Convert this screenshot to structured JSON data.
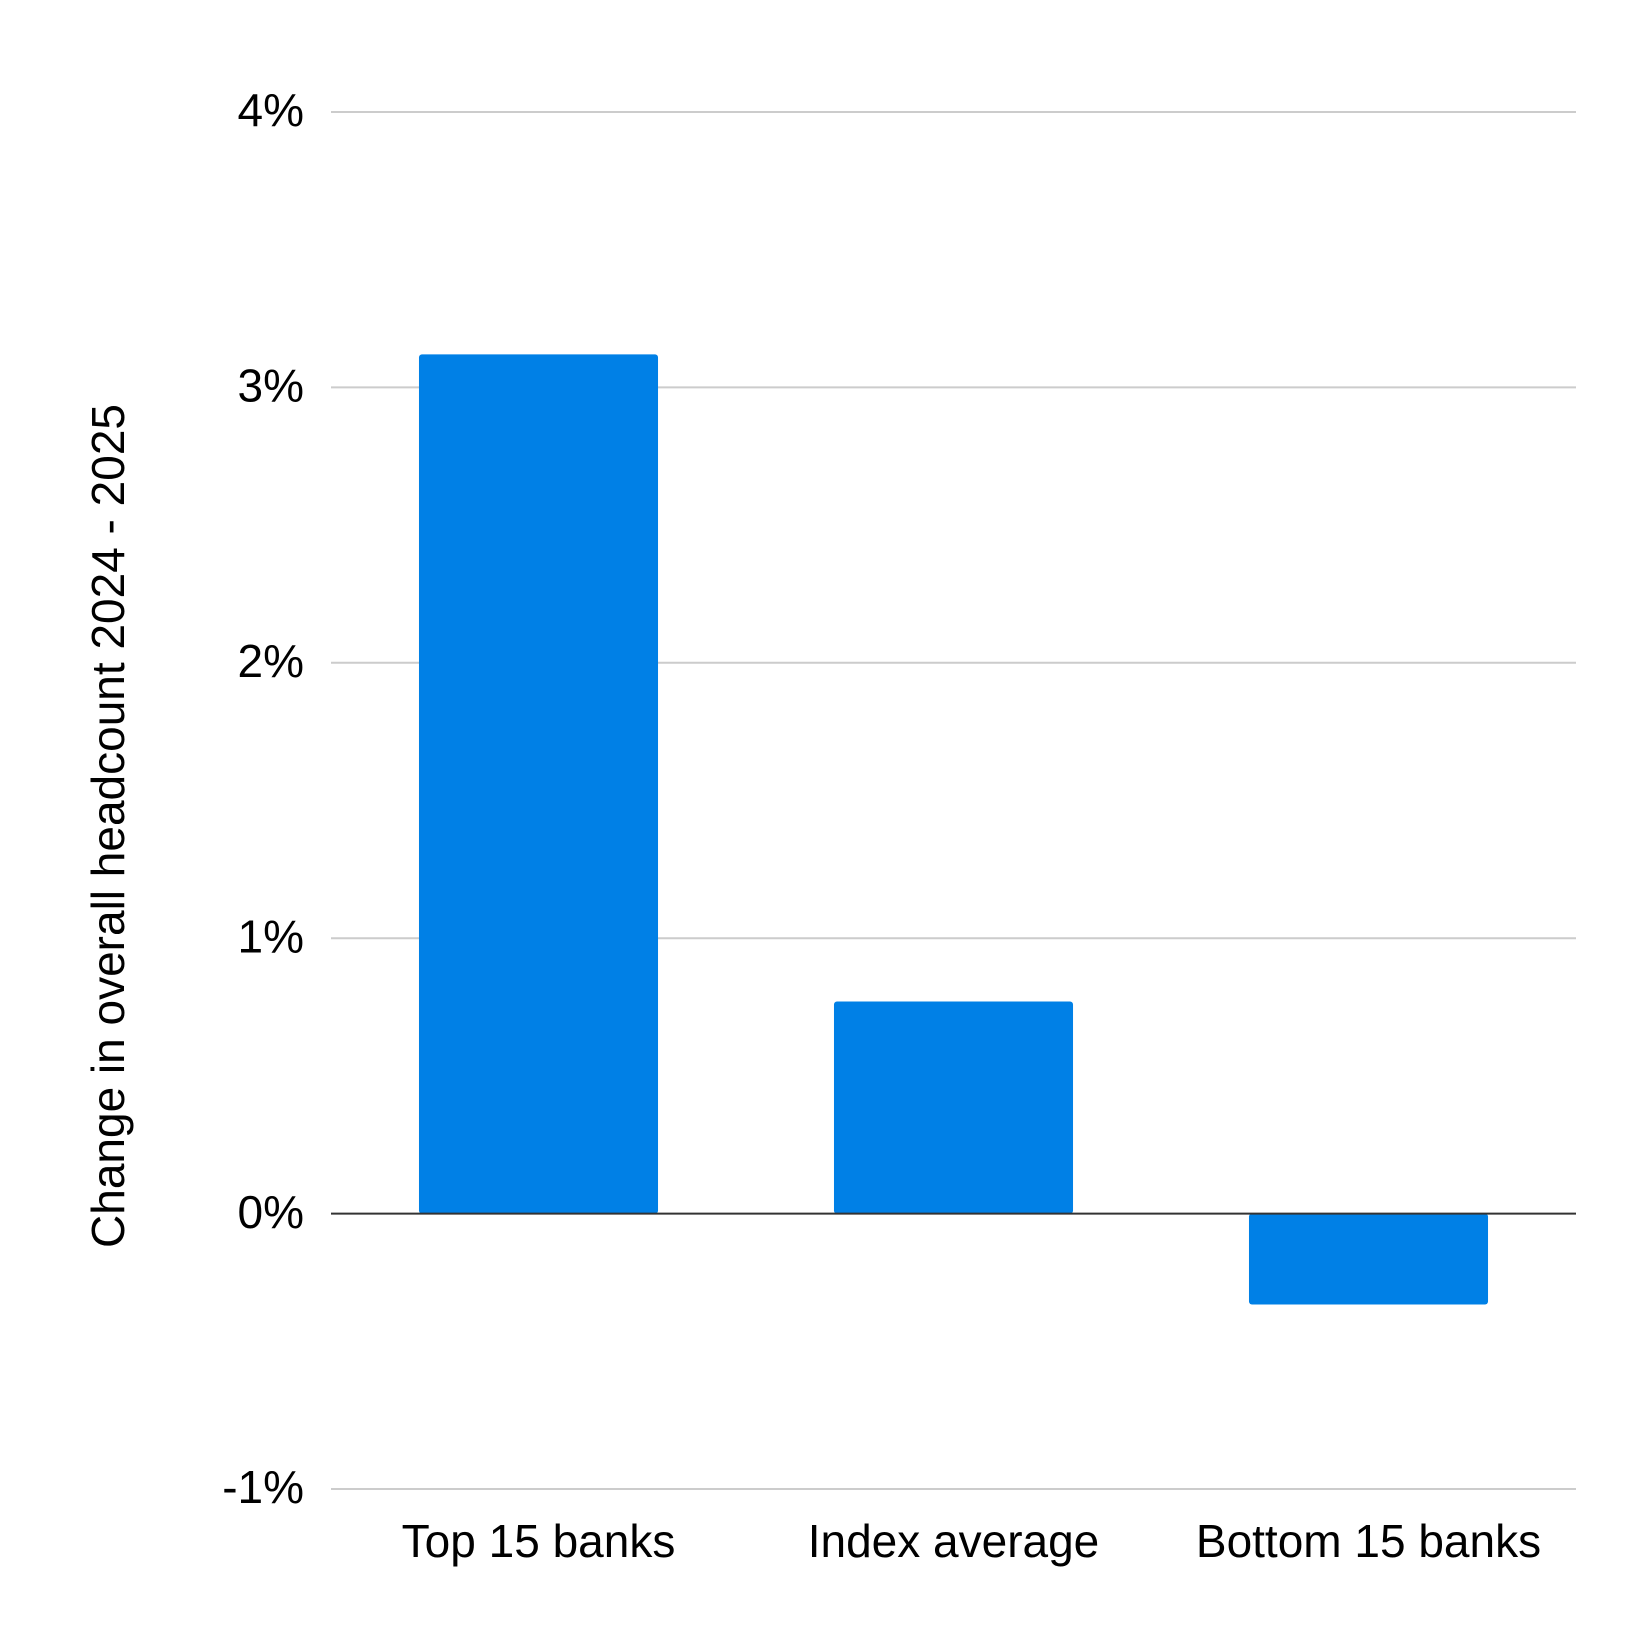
{
  "chart_data": {
    "type": "bar",
    "y_axis_label": "Change in overall headcount 2024 - 2025",
    "categories": [
      "Top 15 banks",
      "Index average",
      "Bottom 15 banks"
    ],
    "values": [
      3.12,
      0.77,
      -0.33
    ],
    "color": "#0080e6",
    "ylim": [
      -1,
      4
    ],
    "yticks": [
      {
        "value": -1,
        "label": "-1%"
      },
      {
        "value": 0,
        "label": "0%"
      },
      {
        "value": 1,
        "label": "1%"
      },
      {
        "value": 2,
        "label": "2%"
      },
      {
        "value": 3,
        "label": "3%"
      },
      {
        "value": 4,
        "label": "4%"
      }
    ],
    "grid": true
  }
}
